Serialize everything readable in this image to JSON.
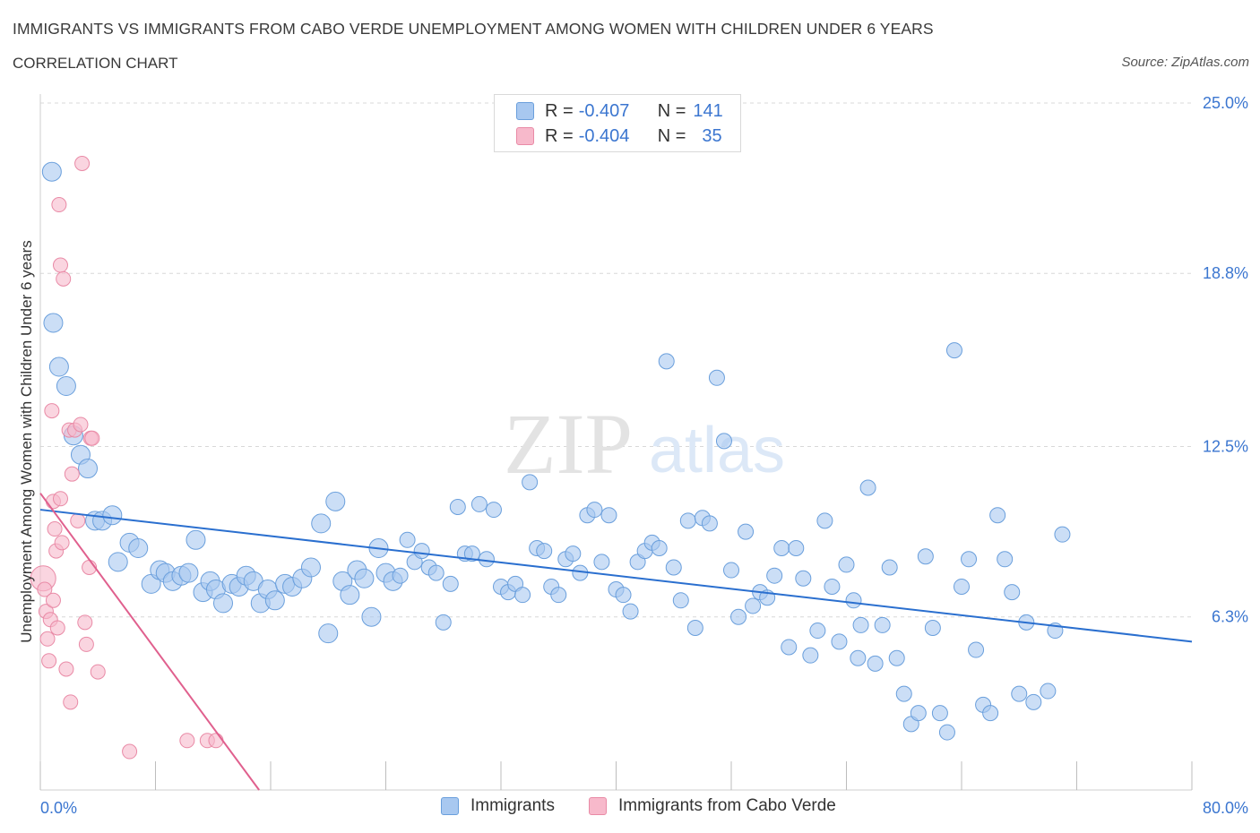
{
  "header": {
    "title": "IMMIGRANTS VS IMMIGRANTS FROM CABO VERDE UNEMPLOYMENT AMONG WOMEN WITH CHILDREN UNDER 6 YEARS",
    "subtitle": "CORRELATION CHART",
    "source": "Source: ZipAtlas.com"
  },
  "watermark": {
    "zip": "ZIP",
    "atlas": "atlas"
  },
  "legend": {
    "rows": [
      {
        "r_label": "R =",
        "r_value": "-0.407",
        "n_label": "N =",
        "n_value": "141",
        "color": "#a8c8f0"
      },
      {
        "r_label": "R =",
        "r_value": "-0.404",
        "n_label": "N =",
        "n_value": "35",
        "color": "#f7b9cb"
      }
    ]
  },
  "bottom_legend": {
    "items": [
      {
        "label": "Immigrants",
        "color": "#a8c8f0"
      },
      {
        "label": "Immigrants from Cabo Verde",
        "color": "#f7b9cb"
      }
    ]
  },
  "colors": {
    "blue_fill": "#a8c8f0",
    "blue_stroke": "#6a9fdc",
    "blue_line": "#2a6fcf",
    "pink_fill": "#f7b9cb",
    "pink_stroke": "#e98aa6",
    "pink_line": "#e0608e",
    "tick_label": "#3b76d0",
    "grid": "#d8d8d8"
  },
  "chart_data": {
    "type": "scatter",
    "title": "IMMIGRANTS VS IMMIGRANTS FROM CABO VERDE UNEMPLOYMENT AMONG WOMEN WITH CHILDREN UNDER 6 YEARS",
    "xlabel": "",
    "ylabel": "Unemployment Among Women with Children Under 6 years",
    "xlim": [
      0,
      80
    ],
    "ylim": [
      0,
      25
    ],
    "x_tick_labels": [
      "0.0%",
      "80.0%"
    ],
    "y_ticks": [
      6.3,
      12.5,
      18.8,
      25.0
    ],
    "y_tick_labels": [
      "6.3%",
      "12.5%",
      "18.8%",
      "25.0%"
    ],
    "grid": true,
    "legend_position": "top-center",
    "series": [
      {
        "name": "Immigrants",
        "trend": {
          "x": [
            0,
            80
          ],
          "y": [
            10.2,
            5.4
          ]
        },
        "points": [
          [
            0.8,
            22.5
          ],
          [
            0.9,
            17
          ],
          [
            1.3,
            15.4
          ],
          [
            1.8,
            14.7
          ],
          [
            2.3,
            12.9
          ],
          [
            2.8,
            12.2
          ],
          [
            3.3,
            11.7
          ],
          [
            3.8,
            9.8
          ],
          [
            4.3,
            9.8
          ],
          [
            5,
            10
          ],
          [
            5.4,
            8.3
          ],
          [
            6.2,
            9
          ],
          [
            6.8,
            8.8
          ],
          [
            7.7,
            7.5
          ],
          [
            8.3,
            8
          ],
          [
            8.7,
            7.9
          ],
          [
            9.2,
            7.6
          ],
          [
            9.8,
            7.8
          ],
          [
            10.3,
            7.9
          ],
          [
            10.8,
            9.1
          ],
          [
            11.3,
            7.2
          ],
          [
            11.8,
            7.6
          ],
          [
            12.2,
            7.3
          ],
          [
            12.7,
            6.8
          ],
          [
            13.3,
            7.5
          ],
          [
            13.8,
            7.4
          ],
          [
            14.3,
            7.8
          ],
          [
            14.8,
            7.6
          ],
          [
            15.3,
            6.8
          ],
          [
            15.8,
            7.3
          ],
          [
            16.3,
            6.9
          ],
          [
            17,
            7.5
          ],
          [
            17.5,
            7.4
          ],
          [
            18.2,
            7.7
          ],
          [
            18.8,
            8.1
          ],
          [
            19.5,
            9.7
          ],
          [
            20,
            5.7
          ],
          [
            20.5,
            10.5
          ],
          [
            21,
            7.6
          ],
          [
            21.5,
            7.1
          ],
          [
            22,
            8
          ],
          [
            22.5,
            7.7
          ],
          [
            23,
            6.3
          ],
          [
            23.5,
            8.8
          ],
          [
            24,
            7.9
          ],
          [
            24.5,
            7.6
          ],
          [
            25,
            7.8
          ],
          [
            25.5,
            9.1
          ],
          [
            26,
            8.3
          ],
          [
            26.5,
            8.7
          ],
          [
            27,
            8.1
          ],
          [
            27.5,
            7.9
          ],
          [
            28,
            6.1
          ],
          [
            28.5,
            7.5
          ],
          [
            29,
            10.3
          ],
          [
            29.5,
            8.6
          ],
          [
            30,
            8.6
          ],
          [
            30.5,
            10.4
          ],
          [
            31,
            8.4
          ],
          [
            31.5,
            10.2
          ],
          [
            32,
            7.4
          ],
          [
            32.5,
            7.2
          ],
          [
            33,
            7.5
          ],
          [
            33.5,
            7.1
          ],
          [
            34,
            11.2
          ],
          [
            34.5,
            8.8
          ],
          [
            35,
            8.7
          ],
          [
            35.5,
            7.4
          ],
          [
            36,
            7.1
          ],
          [
            36.5,
            8.4
          ],
          [
            37,
            8.6
          ],
          [
            37.5,
            7.9
          ],
          [
            38,
            10
          ],
          [
            38.5,
            10.2
          ],
          [
            39,
            8.3
          ],
          [
            39.5,
            10
          ],
          [
            40,
            7.3
          ],
          [
            40.5,
            7.1
          ],
          [
            41,
            6.5
          ],
          [
            41.5,
            8.3
          ],
          [
            42,
            8.7
          ],
          [
            42.5,
            9
          ],
          [
            43,
            8.8
          ],
          [
            43.5,
            15.6
          ],
          [
            44,
            8.1
          ],
          [
            44.5,
            6.9
          ],
          [
            45,
            9.8
          ],
          [
            45.5,
            5.9
          ],
          [
            46,
            9.9
          ],
          [
            46.5,
            9.7
          ],
          [
            47,
            15
          ],
          [
            47.5,
            12.7
          ],
          [
            48,
            8
          ],
          [
            48.5,
            6.3
          ],
          [
            49,
            9.4
          ],
          [
            49.5,
            6.7
          ],
          [
            50,
            7.2
          ],
          [
            50.5,
            7
          ],
          [
            51,
            7.8
          ],
          [
            51.5,
            8.8
          ],
          [
            52,
            5.2
          ],
          [
            52.5,
            8.8
          ],
          [
            53,
            7.7
          ],
          [
            53.5,
            4.9
          ],
          [
            54,
            5.8
          ],
          [
            54.5,
            9.8
          ],
          [
            55,
            7.4
          ],
          [
            55.5,
            5.4
          ],
          [
            56,
            8.2
          ],
          [
            56.5,
            6.9
          ],
          [
            57,
            6
          ],
          [
            57.5,
            11
          ],
          [
            58,
            4.6
          ],
          [
            58.5,
            6
          ],
          [
            59,
            8.1
          ],
          [
            59.5,
            4.8
          ],
          [
            60,
            3.5
          ],
          [
            60.5,
            2.4
          ],
          [
            61,
            2.8
          ],
          [
            61.5,
            8.5
          ],
          [
            62,
            5.9
          ],
          [
            62.5,
            2.8
          ],
          [
            63,
            2.1
          ],
          [
            63.5,
            16
          ],
          [
            64,
            7.4
          ],
          [
            64.5,
            8.4
          ],
          [
            65,
            5.1
          ],
          [
            65.5,
            3.1
          ],
          [
            66,
            2.8
          ],
          [
            66.5,
            10
          ],
          [
            67,
            8.4
          ],
          [
            67.5,
            7.2
          ],
          [
            68,
            3.5
          ],
          [
            68.5,
            6.1
          ],
          [
            69,
            3.2
          ],
          [
            70,
            3.6
          ],
          [
            70.5,
            5.8
          ],
          [
            71,
            9.3
          ],
          [
            56.8,
            4.8
          ]
        ]
      },
      {
        "name": "Immigrants from Cabo Verde",
        "trend": {
          "x": [
            0,
            15.2
          ],
          "y": [
            10.8,
            0
          ]
        },
        "points": [
          [
            0.2,
            7.7
          ],
          [
            0.3,
            7.3
          ],
          [
            0.4,
            6.5
          ],
          [
            0.5,
            5.5
          ],
          [
            0.6,
            4.7
          ],
          [
            0.7,
            6.2
          ],
          [
            0.8,
            13.8
          ],
          [
            0.9,
            10.5
          ],
          [
            1,
            9.5
          ],
          [
            1.1,
            8.7
          ],
          [
            1.2,
            5.9
          ],
          [
            1.3,
            21.3
          ],
          [
            1.4,
            19.1
          ],
          [
            1.5,
            9
          ],
          [
            1.6,
            18.6
          ],
          [
            1.8,
            4.4
          ],
          [
            2,
            13.1
          ],
          [
            2.2,
            11.5
          ],
          [
            2.4,
            13.1
          ],
          [
            2.6,
            9.8
          ],
          [
            2.8,
            13.3
          ],
          [
            2.9,
            22.8
          ],
          [
            3.1,
            6.1
          ],
          [
            3.2,
            5.3
          ],
          [
            3.4,
            8.1
          ],
          [
            3.5,
            12.8
          ],
          [
            3.6,
            12.8
          ],
          [
            4,
            4.3
          ],
          [
            2.1,
            3.2
          ],
          [
            6.2,
            1.4
          ],
          [
            10.2,
            1.8
          ],
          [
            11.6,
            1.8
          ],
          [
            12.2,
            1.8
          ],
          [
            1.4,
            10.6
          ],
          [
            0.9,
            6.9
          ]
        ]
      }
    ]
  }
}
